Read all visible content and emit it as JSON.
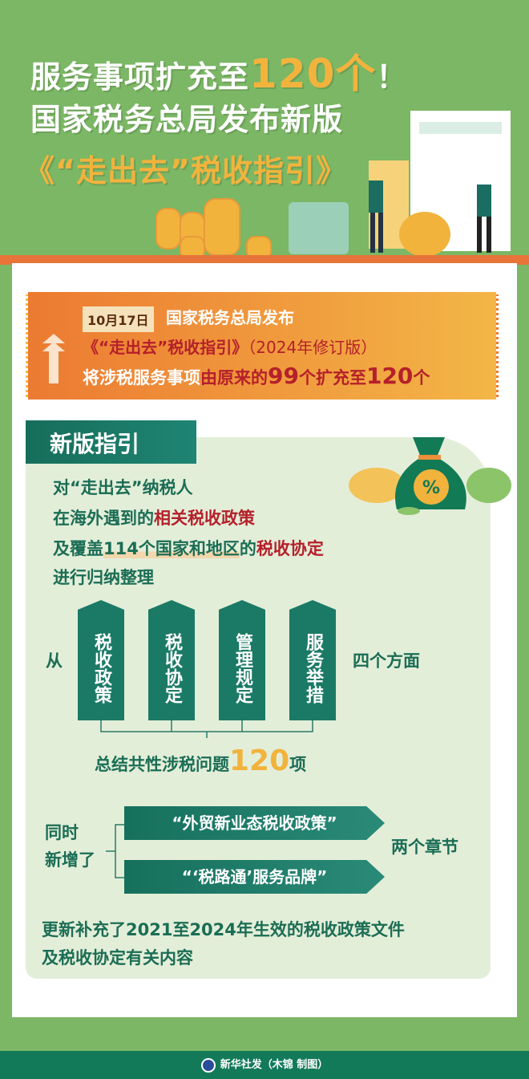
{
  "header": {
    "line1_prefix": "服务事项扩充至",
    "line1_number": "120个",
    "line1_suffix": "！",
    "line2": "国家税务总局发布新版",
    "line3": "《“走出去”税收指引》"
  },
  "banner": {
    "date": "10月17日",
    "publisher": "国家税务总局发布",
    "doc_title": "《“走出去”税收指引》",
    "edition": "（2024年修订版）",
    "change_prefix": "将涉税服务事项",
    "change_mid": "由原来的",
    "old_count": "99",
    "unit1": "个",
    "change_verb": "扩充至",
    "new_count": "120",
    "unit2": "个"
  },
  "guide": {
    "tab": "新版指引",
    "l1": "对“走出去”纳税人",
    "l2a": "在海外遇到的",
    "l2b": "相关税收政策",
    "l3a": "及覆盖",
    "l3b": "114个国家和地区",
    "l3c": "的",
    "l3d": "税收协定",
    "l4": "进行归纳整理",
    "from": "从",
    "aspects": [
      "税收政策",
      "税收协定",
      "管理规定",
      "服务举措"
    ],
    "aspects_label": "四个方面",
    "summary_prefix": "总结共性涉税问题",
    "summary_number": "120",
    "summary_suffix": "项",
    "added_label1": "同时",
    "added_label2": "新增了",
    "chapters": [
      "“外贸新业态税收政策”",
      "“‘税路通’服务品牌”"
    ],
    "chapters_label": "两个章节",
    "update1": "更新补充了2021至2024年生效的税收政策文件",
    "update2": "及税收协定有关内容"
  },
  "footer": {
    "credit": "新华社发（木锦 制图）"
  },
  "colors": {
    "bg": "#7bb765",
    "teal": "#1b7a66",
    "accent": "#f2b33d",
    "red": "#b5202a",
    "orange": "#ec7a32"
  }
}
